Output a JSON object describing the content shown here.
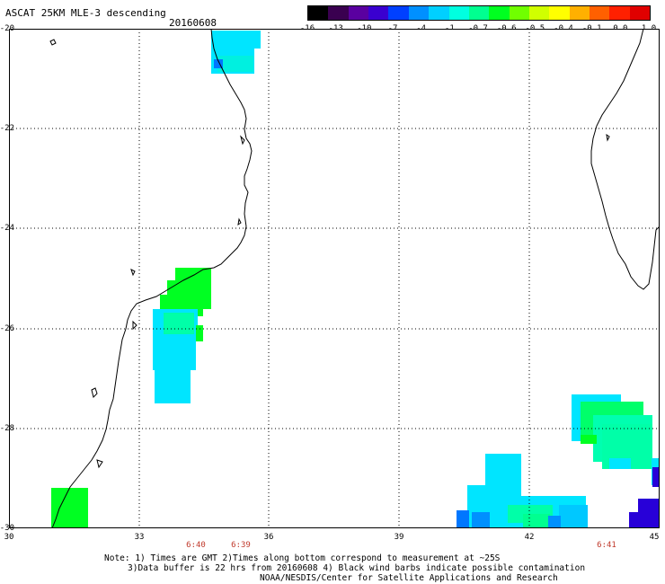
{
  "header": {
    "title": "ASCAT 25KM MLE-3 descending",
    "date": "20160608"
  },
  "colorbar": {
    "labels": [
      "-16",
      "-13",
      "-10",
      "-7",
      "-4",
      "-1",
      "-0.7",
      "-0.6",
      "-0.5",
      "-0.4",
      "-0.1",
      "0.0",
      "1.0"
    ],
    "colors": [
      "#000000",
      "#3a0050",
      "#5a00a0",
      "#3a00d0",
      "#0040ff",
      "#0090ff",
      "#00d0ff",
      "#00ffe0",
      "#00ff90",
      "#00ff20",
      "#70ff00",
      "#d0ff00",
      "#ffff00",
      "#ffb000",
      "#ff6000",
      "#ff2000",
      "#e00000"
    ]
  },
  "axes": {
    "x_labels": [
      "30",
      "33",
      "36",
      "39",
      "42",
      "45"
    ],
    "y_labels": [
      "-20",
      "-22",
      "-24",
      "-26",
      "-28",
      "-30"
    ],
    "lon_range": [
      30,
      45
    ],
    "lat_range": [
      -30,
      -20
    ]
  },
  "time_labels": [
    "6:40",
    "6:39",
    "6:41"
  ],
  "notes": {
    "line1": "Note: 1) Times are GMT 2)Times along bottom correspond to measurement at ~25S",
    "line2": "3)Data buffer is 22 hrs from 20160608 4) Black wind barbs indicate possible contamination",
    "line3": "NOAA/NESDIS/Center for Satellite Applications and Research"
  },
  "colors": {
    "cyan": "#00e5ff",
    "light_cyan": "#17f0ff",
    "green": "#00ff22",
    "aqua_green": "#00ffa8",
    "blue": "#0077ff",
    "dark_blue": "#2800d8",
    "time_label": "#c0392b"
  }
}
